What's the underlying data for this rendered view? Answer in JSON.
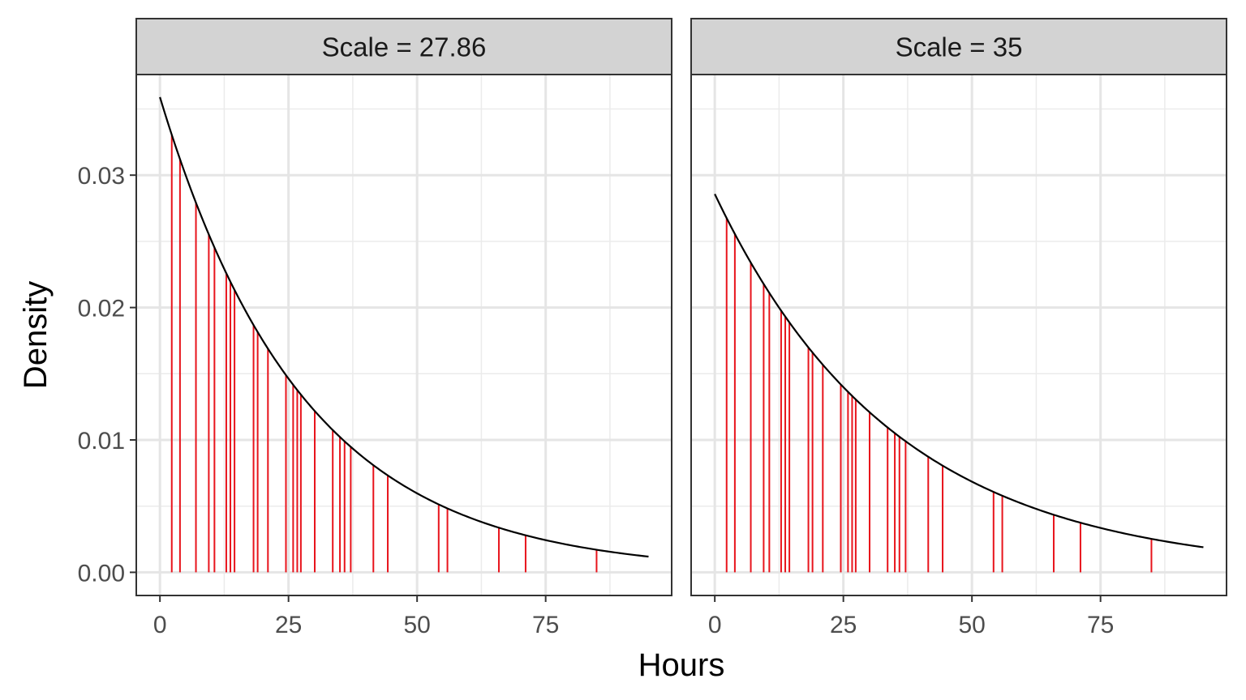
{
  "chart_data": {
    "type": "faceted-line-with-spikes",
    "xlabel": "Hours",
    "ylabel": "Density",
    "xlim": [
      -4.6,
      99.5
    ],
    "ylim": [
      -0.00175,
      0.0376
    ],
    "x_ticks": [
      0,
      25,
      50,
      75
    ],
    "x_tick_labels": [
      "0",
      "25",
      "50",
      "75"
    ],
    "y_ticks": [
      0,
      0.01,
      0.02,
      0.03
    ],
    "y_tick_labels": [
      "0.00",
      "0.01",
      "0.02",
      "0.03"
    ],
    "x_minor": [
      12.5,
      37.5,
      62.5,
      87.5
    ],
    "y_minor": [
      0.005,
      0.015,
      0.025,
      0.035
    ],
    "grid": true,
    "curve_color": "#000000",
    "spike_color": "#e8141c",
    "strip_fill": "#d3d3d3",
    "observations": [
      2.3,
      3.9,
      7.0,
      9.5,
      10.6,
      12.9,
      13.7,
      14.5,
      18.2,
      19.0,
      21.0,
      24.5,
      25.9,
      26.7,
      27.4,
      30.1,
      33.6,
      35.0,
      35.9,
      37.1,
      41.5,
      44.3,
      54.2,
      55.9,
      65.9,
      71.1,
      84.9
    ],
    "panels": [
      {
        "strip_label": "Scale = 27.86",
        "scale": 27.86,
        "curve": {
          "x_start": 0,
          "x_end": 95
        }
      },
      {
        "strip_label": "Scale = 35",
        "scale": 35,
        "curve": {
          "x_start": 0,
          "x_end": 95
        }
      }
    ]
  }
}
